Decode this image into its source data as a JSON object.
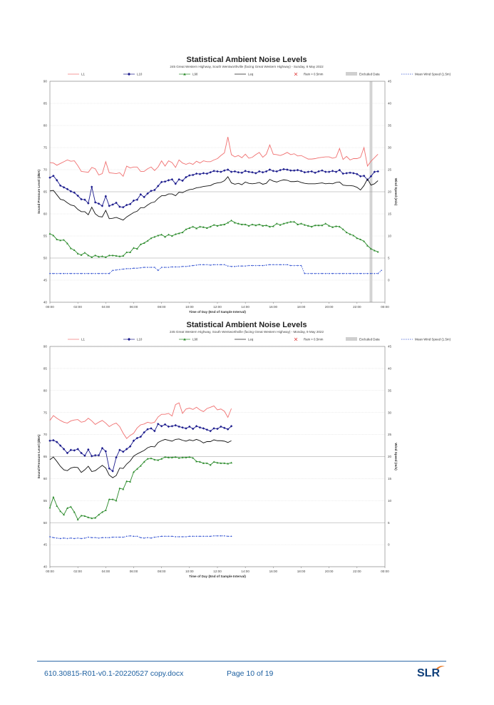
{
  "chart_data": [
    {
      "type": "line",
      "title": "Statistical Ambient Noise Levels",
      "subtitle": "245 Great Western Highway, South Wentworthville (facing Great Western Highway) - Sunday, 8 May 2022",
      "xlabel": "Time of Day (End of Sample Interval)",
      "ylabel": "Sound Pressure Level (dBA)",
      "y2label": "Wind Speed (m/s)",
      "xticks": [
        "00:00",
        "02:00",
        "04:00",
        "06:00",
        "08:00",
        "10:00",
        "12:00",
        "14:00",
        "16:00",
        "18:00",
        "20:00",
        "22:00",
        "00:00"
      ],
      "yticks": [
        "40",
        "45",
        "50",
        "55",
        "60",
        "65",
        "70",
        "75",
        "80",
        "85",
        "90"
      ],
      "y2ticks": [
        "0",
        "5",
        "10",
        "15",
        "20",
        "25",
        "30",
        "35",
        "40",
        "45"
      ],
      "ylim": [
        40,
        90
      ],
      "y2lim": [
        -5,
        45
      ],
      "xlim": [
        0,
        24
      ],
      "grid": true,
      "legend": {
        "position": "top",
        "items": [
          {
            "label": "L1",
            "color": "#f07070",
            "marker": "none"
          },
          {
            "label": "L10",
            "color": "#1a1a8c",
            "marker": "diamond"
          },
          {
            "label": "L90",
            "color": "#2a8a2a",
            "marker": "triangle"
          },
          {
            "label": "Leq",
            "color": "#111111",
            "marker": "none"
          },
          {
            "label": "Rain > 0.5mm",
            "color": "#e04040",
            "marker": "cross"
          },
          {
            "label": "Excluded Data",
            "color": "#cfcfcf",
            "marker": "box"
          },
          {
            "label": "Mean Wind Speed (1.5m)",
            "color": "#3050d0",
            "marker": "dot"
          }
        ]
      },
      "excluded": [
        [
          22.9,
          23.1
        ]
      ],
      "series": [
        {
          "name": "L1",
          "color": "#f07070",
          "y": [
            71.6,
            71.5,
            71,
            71.4,
            71.8,
            72.2,
            71.9,
            72,
            70.9,
            69.6,
            69.5,
            69.4,
            70.5,
            70.2,
            68.8,
            69.1,
            71.8,
            69.3,
            69.2,
            69.1,
            69.3,
            68.5,
            70.8,
            70.4,
            70.6,
            70.6,
            69.6,
            69.6,
            70.2,
            70.6,
            69.8,
            70.6,
            72,
            70.8,
            72,
            71.6,
            70.5,
            72.2,
            71.5,
            71.2,
            71.5,
            71.2,
            71.9,
            71.5,
            72,
            71.8,
            71.8,
            72.2,
            72.5,
            73.2,
            73.8,
            77.4,
            73.4,
            72.9,
            73.2,
            72.7,
            73.5,
            72.6,
            72.8,
            73.4,
            73.9,
            72.8,
            73.5,
            75.6,
            73.5,
            73.4,
            73.2,
            73.5,
            73.9,
            73.4,
            73.6,
            73.1,
            73.2,
            72.8,
            72.4,
            72.4,
            72.5,
            72.7,
            72.8,
            72.9,
            72.9,
            72.6,
            72.8,
            74.8,
            72.3,
            73,
            72.2,
            72.5,
            72.5,
            72.8,
            75,
            70.8,
            71.9,
            72.7,
            73.5
          ]
        },
        {
          "name": "L10",
          "color": "#1a1a8c",
          "y": [
            68.2,
            68.6,
            67.6,
            66.4,
            66,
            65.6,
            65.1,
            64.8,
            64.1,
            63.3,
            63.2,
            62.4,
            66.1,
            62.6,
            62.3,
            61.8,
            64,
            61.8,
            62.1,
            62.5,
            61.6,
            61.5,
            62,
            62.2,
            63,
            63.2,
            64.4,
            63.8,
            64.6,
            65.2,
            65.4,
            66.3,
            67.2,
            67.3,
            67.6,
            67.8,
            66.8,
            67.8,
            67.5,
            68.3,
            68.7,
            68.8,
            69.1,
            69,
            69.2,
            69.1,
            69.4,
            69.7,
            69.6,
            69.5,
            69.8,
            70,
            69.5,
            69.6,
            69.4,
            69.3,
            69.7,
            69.5,
            69.4,
            69.2,
            69.6,
            69.4,
            69.6,
            70,
            69.7,
            69.6,
            69.9,
            70.1,
            70,
            69.8,
            69.8,
            69.9,
            69.7,
            69.4,
            69.5,
            69.6,
            69.3,
            69.6,
            69.8,
            69.5,
            69.5,
            69.7,
            69.5,
            69.9,
            69.1,
            69.2,
            69.3,
            69.2,
            69,
            68.5,
            68.6,
            67.7,
            68.5,
            69.5,
            69.6
          ]
        },
        {
          "name": "L90",
          "color": "#2a8a2a",
          "y": [
            55.5,
            55.1,
            54.2,
            54,
            54.1,
            53.3,
            52.2,
            51.8,
            51,
            50.7,
            51.2,
            50.6,
            50.2,
            50.6,
            50.3,
            50.4,
            50.2,
            50.6,
            50.6,
            50.5,
            50.4,
            50.5,
            51.3,
            51.3,
            52.3,
            52.1,
            53.1,
            53.4,
            53.9,
            54.5,
            54.8,
            55.1,
            55.3,
            54.8,
            55.3,
            55,
            55.4,
            55.6,
            55.8,
            56.5,
            56.8,
            57.1,
            56.7,
            57.1,
            57,
            56.8,
            57.1,
            57.5,
            57.3,
            57.5,
            57.6,
            58,
            58.5,
            58,
            57.8,
            57.6,
            57.6,
            57.3,
            57.6,
            57.4,
            57.6,
            57.3,
            57.4,
            57.1,
            57.2,
            57.8,
            57.5,
            57.8,
            58,
            58.2,
            58.2,
            57.6,
            57.8,
            57.5,
            57.3,
            57.1,
            57.4,
            57.4,
            57.4,
            57.8,
            57.3,
            57,
            57.2,
            57.1,
            56.5,
            55.8,
            55.4,
            55.1,
            54.5,
            54.2,
            53.8,
            52.8,
            52.1,
            51.7,
            51.4
          ]
        },
        {
          "name": "Leq",
          "color": "#111111",
          "y": [
            65.2,
            65.3,
            64.3,
            63.3,
            63.1,
            62.5,
            62,
            61.8,
            61,
            60.5,
            60.5,
            59.8,
            61.5,
            60,
            59.4,
            59.3,
            60.8,
            58.9,
            59,
            59.2,
            58.9,
            58.6,
            59.3,
            59.8,
            60.3,
            60.6,
            61.4,
            61.4,
            62,
            62.5,
            62.7,
            63.5,
            64.1,
            64.1,
            64.5,
            64.5,
            64.1,
            64.9,
            64.8,
            65.2,
            65.5,
            65.6,
            65.9,
            66,
            66.2,
            66.3,
            66.4,
            66.8,
            67,
            67.1,
            67.5,
            68.4,
            67,
            66.7,
            66.9,
            66.6,
            67.2,
            66.9,
            66.8,
            66.9,
            67.1,
            66.7,
            66.9,
            67.8,
            67.4,
            67.2,
            67.5,
            67.7,
            67.6,
            67.3,
            67.3,
            67.4,
            67.1,
            66.9,
            66.8,
            66.8,
            66.8,
            66.9,
            67,
            66.8,
            66.9,
            66.8,
            67.1,
            67.2,
            66.5,
            66.4,
            66.4,
            66.3,
            66,
            65.4,
            66.4,
            67.9,
            66.5,
            66.8,
            67.5
          ]
        },
        {
          "name": "Mean Wind Speed (1.5m)",
          "color": "#3050d0",
          "axis": "y2",
          "y": [
            1.5,
            1.5,
            1.5,
            1.5,
            1.5,
            1.5,
            1.5,
            1.5,
            1.5,
            1.5,
            1.5,
            1.5,
            1.5,
            1.5,
            1.5,
            1.5,
            1.5,
            1.5,
            2.2,
            2.3,
            2.4,
            2.5,
            2.6,
            2.6,
            2.7,
            2.7,
            2.8,
            2.9,
            2.9,
            2.9,
            2.9,
            2.2,
            2.9,
            2.9,
            2.9,
            3,
            3,
            3,
            3.1,
            3.1,
            3.2,
            3.3,
            3.4,
            3.5,
            3.5,
            3.5,
            3.4,
            3.5,
            3.5,
            3.5,
            3.5,
            3.2,
            3.1,
            3.1,
            3.2,
            3.2,
            3.2,
            3.3,
            3.3,
            3.3,
            3.3,
            3.3,
            3.4,
            3.5,
            3.5,
            3.5,
            3.5,
            3.5,
            3.5,
            3.3,
            3.3,
            3.3,
            3.3,
            1.5,
            1.5,
            1.5,
            1.5,
            1.5,
            1.5,
            1.5,
            1.5,
            1.5,
            1.5,
            1.5,
            1.5,
            1.5,
            1.5,
            1.5,
            1.5,
            1.5,
            1.5,
            1.5,
            1.5,
            1.5,
            1.5,
            2.2
          ]
        }
      ]
    },
    {
      "type": "line",
      "title": "Statistical Ambient Noise Levels",
      "subtitle": "245 Great Western Highway, South Wentworthville (facing Great Western Highway) - Monday, 9 May 2022",
      "xlabel": "Time of Day (End of Sample Interval)",
      "ylabel": "Sound Pressure Level (dBA)",
      "y2label": "Wind Speed (m/s)",
      "xticks": [
        "00:00",
        "02:00",
        "04:00",
        "06:00",
        "08:00",
        "10:00",
        "12:00",
        "14:00",
        "16:00",
        "18:00",
        "20:00",
        "22:00",
        "00:00"
      ],
      "yticks": [
        "40",
        "45",
        "50",
        "55",
        "60",
        "65",
        "70",
        "75",
        "80",
        "85",
        "90"
      ],
      "y2ticks": [
        "0",
        "5",
        "10",
        "15",
        "20",
        "25",
        "30",
        "35",
        "40",
        "45"
      ],
      "ylim": [
        40,
        90
      ],
      "y2lim": [
        -5,
        45
      ],
      "xlim": [
        0,
        24
      ],
      "grid": true,
      "legend": {
        "position": "top",
        "items": [
          {
            "label": "L1",
            "color": "#f07070",
            "marker": "none"
          },
          {
            "label": "L10",
            "color": "#1a1a8c",
            "marker": "diamond"
          },
          {
            "label": "L90",
            "color": "#2a8a2a",
            "marker": "triangle"
          },
          {
            "label": "Leq",
            "color": "#111111",
            "marker": "none"
          },
          {
            "label": "Rain > 0.5mm",
            "color": "#e04040",
            "marker": "cross"
          },
          {
            "label": "Excluded Data",
            "color": "#cfcfcf",
            "marker": "box"
          },
          {
            "label": "Mean Wind Speed (1.5m)",
            "color": "#3050d0",
            "marker": "dot"
          }
        ]
      },
      "excluded": [],
      "series": [
        {
          "name": "L1",
          "color": "#f07070",
          "y": [
            73.2,
            74.3,
            73.7,
            73.2,
            72.8,
            72.6,
            73.1,
            73.3,
            73.4,
            72.8,
            73,
            73.7,
            73.1,
            72.3,
            72.8,
            73.2,
            72.6,
            71.8,
            72.3,
            72.6,
            71.8,
            70.3,
            69.1,
            69.8,
            70.3,
            71.5,
            72.2,
            72.4,
            72.8,
            72.6,
            72.8,
            74,
            74.6,
            74.6,
            74.8,
            74.2,
            76.8,
            77.2,
            74.8,
            75.8,
            76,
            75.7,
            76.2,
            75.6,
            75.2,
            75.9,
            76.2,
            76.5,
            75.6,
            75.8,
            75.3,
            73.9,
            75.9
          ]
        },
        {
          "name": "L10",
          "color": "#1a1a8c",
          "y": [
            68.6,
            68.7,
            68.3,
            67.5,
            66.7,
            65.8,
            66.5,
            66.4,
            66.7,
            65.8,
            65.2,
            66.6,
            65.1,
            65.3,
            65.3,
            66.9,
            66.2,
            62.3,
            61.7,
            64.8,
            66.5,
            66.1,
            66.7,
            67.3,
            68.6,
            69.2,
            69.5,
            70.5,
            71.2,
            71.4,
            70.8,
            72.4,
            71.9,
            72.3,
            71.8,
            71.9,
            72.1,
            71.8,
            71.6,
            71.4,
            71.8,
            71.3,
            71.9,
            71.6,
            71.4,
            71.1,
            70.8,
            71.4,
            71.3,
            71.8,
            71.5,
            71.2,
            71.9
          ]
        },
        {
          "name": "L90",
          "color": "#2a8a2a",
          "y": [
            53.4,
            55.8,
            53.8,
            52.6,
            51.8,
            53.3,
            53.6,
            52.4,
            50.7,
            51.6,
            51.5,
            51.2,
            51,
            51.1,
            51.8,
            52.4,
            52.8,
            55.3,
            55.3,
            55,
            57.8,
            57.6,
            59.4,
            59.3,
            61.5,
            62.2,
            62.9,
            63.8,
            64.5,
            64.6,
            64.3,
            64.2,
            64.5,
            64.9,
            64.8,
            64.8,
            64.9,
            64.7,
            64.8,
            64.8,
            64.9,
            64.7,
            63.9,
            63.8,
            63.5,
            63.5,
            63.1,
            63.8,
            63.6,
            63.5,
            63.5,
            63.4,
            63.6
          ]
        },
        {
          "name": "Leq",
          "color": "#111111",
          "y": [
            64.3,
            64.9,
            63.9,
            62.8,
            62,
            61.8,
            62.4,
            62.6,
            62.5,
            61.4,
            62,
            62.8,
            61.6,
            61.8,
            62.4,
            63,
            62.4,
            60.8,
            60.2,
            60.7,
            62.4,
            62.3,
            63.3,
            64,
            65.1,
            65.6,
            66,
            66.4,
            67,
            67.3,
            67.2,
            68.2,
            68.6,
            68.9,
            68.7,
            68.5,
            68.9,
            69,
            68.7,
            68.5,
            68.8,
            68.6,
            68.9,
            68.6,
            68.1,
            68.4,
            68.4,
            68.8,
            68.6,
            68.6,
            68.5,
            68.2,
            68.6
          ]
        },
        {
          "name": "Mean Wind Speed (1.5m)",
          "color": "#3050d0",
          "axis": "y2",
          "y": [
            1.8,
            1.6,
            1.5,
            1.4,
            1.5,
            1.4,
            1.5,
            1.4,
            1.5,
            1.4,
            1.5,
            1.7,
            1.6,
            1.6,
            1.5,
            1.6,
            1.6,
            1.6,
            1.7,
            1.7,
            1.7,
            1.7,
            1.9,
            2,
            1.9,
            1.9,
            1.6,
            1.5,
            1.6,
            1.5,
            1.7,
            1.8,
            1.9,
            1.9,
            1.9,
            1.9,
            1.8,
            1.8,
            1.8,
            1.8,
            1.9,
            1.9,
            1.9,
            1.9,
            1.9,
            1.9,
            1.9,
            2,
            2,
            2,
            2,
            1.9,
            1.9
          ]
        }
      ]
    }
  ],
  "footer": {
    "document": "610.30815-R01-v0.1-20220527 copy.docx",
    "page": "Page 10 of 19",
    "logo": "SLR",
    "logo_accent_color": "#e87722"
  }
}
